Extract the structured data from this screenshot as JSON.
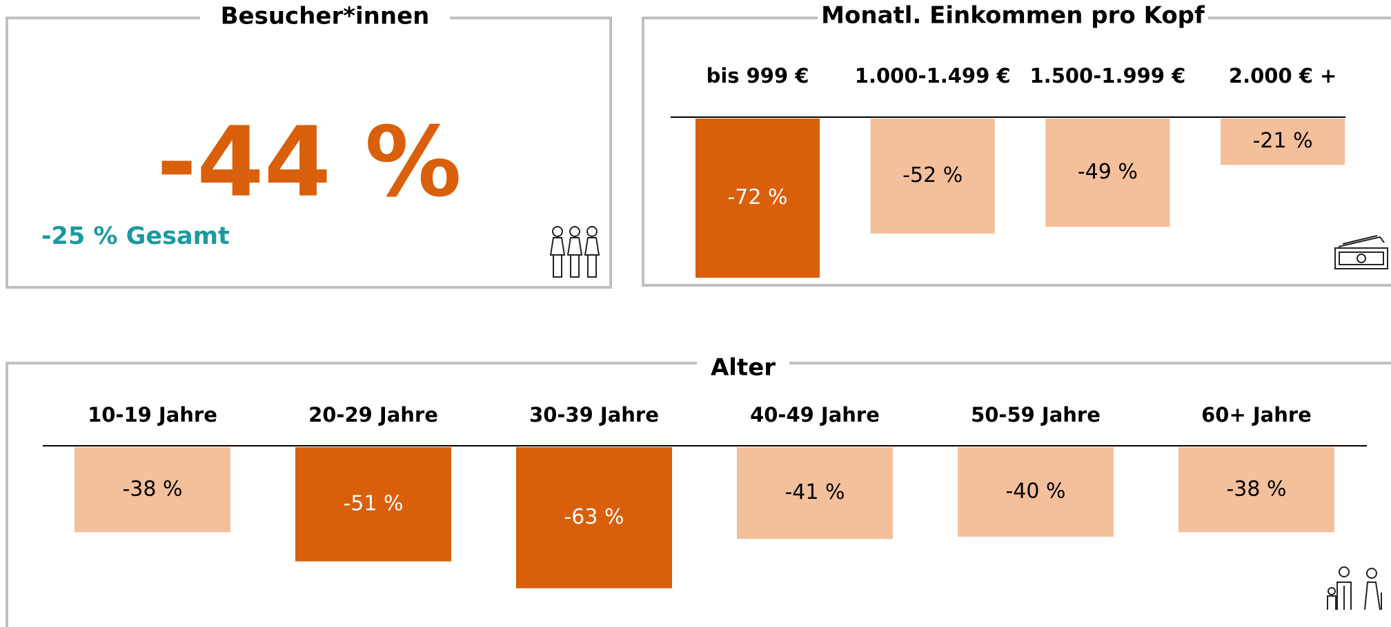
{
  "kpi": {
    "title": "Besucher*innen",
    "value": "-44 %",
    "subtitle": "-25 % Gesamt"
  },
  "chart_data": [
    {
      "type": "bar",
      "title": "Monatl. Einkommen pro Kopf",
      "categories": [
        "bis 999 €",
        "1.000-1.499 €",
        "1.500-1.999 €",
        "2.000 € +"
      ],
      "values": [
        -72,
        -52,
        -49,
        -21
      ],
      "value_labels": [
        "-72 %",
        "-52 %",
        "-49 %",
        "-21 %"
      ],
      "colors": [
        "#d95f0a",
        "#f4bf9b",
        "#f4bf9b",
        "#f4bf9b"
      ]
    },
    {
      "type": "bar",
      "title": "Alter",
      "categories": [
        "10-19 Jahre",
        "20-29 Jahre",
        "30-39 Jahre",
        "40-49 Jahre",
        "50-59 Jahre",
        "60+ Jahre"
      ],
      "values": [
        -38,
        -51,
        -63,
        -41,
        -40,
        -38
      ],
      "value_labels": [
        "-38 %",
        "-51 %",
        "-63 %",
        "-41 %",
        "-40 %",
        "-38 %"
      ],
      "colors": [
        "#f4bf9b",
        "#d95f0a",
        "#d95f0a",
        "#f4bf9b",
        "#f4bf9b",
        "#f4bf9b"
      ]
    }
  ]
}
